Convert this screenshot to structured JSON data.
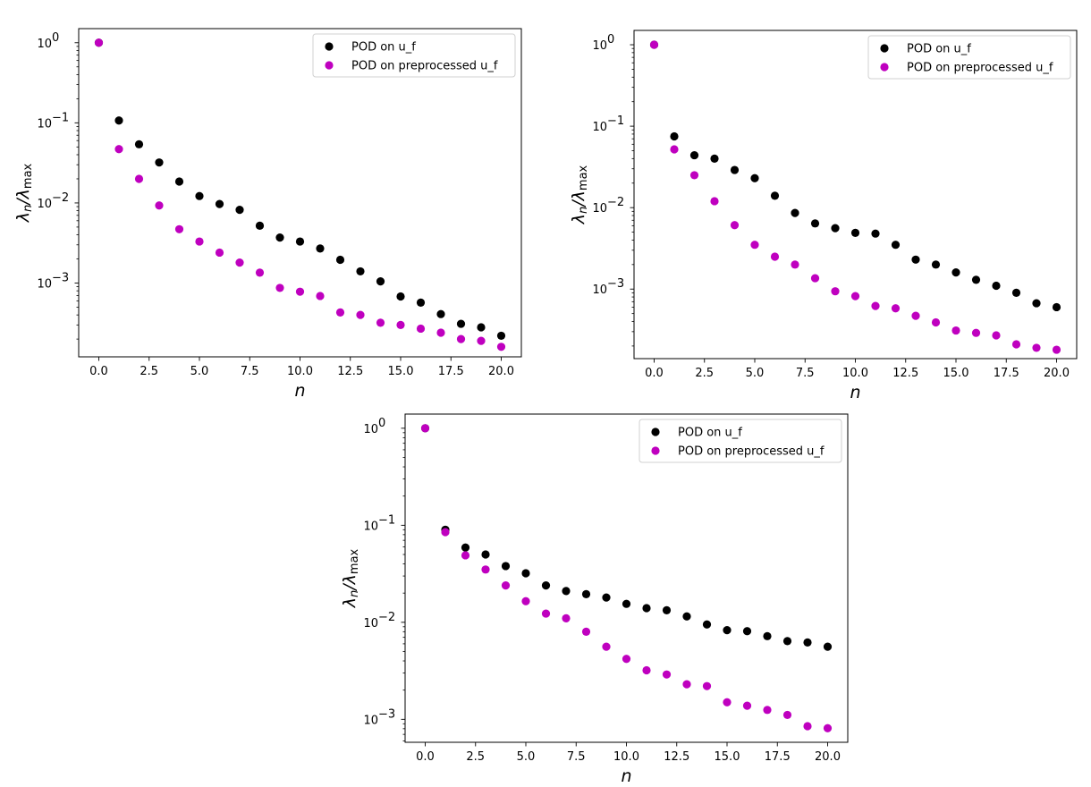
{
  "chart_data": [
    {
      "type": "scatter",
      "title": "",
      "xlabel": "n",
      "ylabel_main": "λ",
      "ylabel_sub1": "n",
      "ylabel_mid": "/λ",
      "ylabel_sub2": "max",
      "yscale": "log",
      "xlim": [
        -1,
        21
      ],
      "ylim": [
        0.00012,
        1.5
      ],
      "xticks": [
        "0.0",
        "2.5",
        "5.0",
        "7.5",
        "10.0",
        "12.5",
        "15.0",
        "17.5",
        "20.0"
      ],
      "yticks": [
        {
          "base": "10",
          "exp": "0"
        },
        {
          "base": "10",
          "exp": "−1"
        },
        {
          "base": "10",
          "exp": "−2"
        },
        {
          "base": "10",
          "exp": "−3"
        }
      ],
      "legend_position": "top-right",
      "x": [
        0,
        1,
        2,
        3,
        4,
        5,
        6,
        7,
        8,
        9,
        10,
        11,
        12,
        13,
        14,
        15,
        16,
        17,
        18,
        19,
        20
      ],
      "series": [
        {
          "name": "POD on u_f",
          "color": "#000000",
          "values": [
            1.0,
            0.107,
            0.054,
            0.032,
            0.0185,
            0.0122,
            0.0097,
            0.0082,
            0.0052,
            0.0037,
            0.0033,
            0.0027,
            0.00195,
            0.0014,
            0.00105,
            0.00068,
            0.00057,
            0.00041,
            0.00031,
            0.00028,
            0.00022
          ]
        },
        {
          "name": "POD on preprocessed u_f",
          "color": "#bf00bf",
          "values": [
            1.0,
            0.047,
            0.02,
            0.0093,
            0.0047,
            0.0033,
            0.0024,
            0.0018,
            0.00135,
            0.00087,
            0.00078,
            0.00069,
            0.00043,
            0.0004,
            0.00032,
            0.0003,
            0.00027,
            0.00024,
            0.0002,
            0.00019,
            0.00016
          ]
        }
      ]
    },
    {
      "type": "scatter",
      "title": "",
      "xlabel": "n",
      "ylabel_main": "λ",
      "ylabel_sub1": "n",
      "ylabel_mid": "/λ",
      "ylabel_sub2": "max",
      "yscale": "log",
      "xlim": [
        -1,
        21
      ],
      "ylim": [
        0.00014,
        1.5
      ],
      "xticks": [
        "0.0",
        "2.5",
        "5.0",
        "7.5",
        "10.0",
        "12.5",
        "15.0",
        "17.5",
        "20.0"
      ],
      "yticks": [
        {
          "base": "10",
          "exp": "0"
        },
        {
          "base": "10",
          "exp": "−1"
        },
        {
          "base": "10",
          "exp": "−2"
        },
        {
          "base": "10",
          "exp": "−3"
        }
      ],
      "legend_position": "top-right",
      "x": [
        0,
        1,
        2,
        3,
        4,
        5,
        6,
        7,
        8,
        9,
        10,
        11,
        12,
        13,
        14,
        15,
        16,
        17,
        18,
        19,
        20
      ],
      "series": [
        {
          "name": "POD on u_f",
          "color": "#000000",
          "values": [
            1.0,
            0.075,
            0.044,
            0.04,
            0.029,
            0.023,
            0.014,
            0.0086,
            0.0064,
            0.0056,
            0.0049,
            0.0048,
            0.0035,
            0.0023,
            0.002,
            0.0016,
            0.0013,
            0.0011,
            0.0009,
            0.00067,
            0.0006
          ]
        },
        {
          "name": "POD on preprocessed u_f",
          "color": "#bf00bf",
          "values": [
            1.0,
            0.052,
            0.025,
            0.012,
            0.0061,
            0.0035,
            0.0025,
            0.002,
            0.00136,
            0.00094,
            0.00082,
            0.00062,
            0.00058,
            0.00047,
            0.00039,
            0.00031,
            0.00029,
            0.00027,
            0.00021,
            0.00019,
            0.00018
          ]
        }
      ]
    },
    {
      "type": "scatter",
      "title": "",
      "xlabel": "n",
      "ylabel_main": "λ",
      "ylabel_sub1": "n",
      "ylabel_mid": "/λ",
      "ylabel_sub2": "max",
      "yscale": "log",
      "xlim": [
        -1,
        21
      ],
      "ylim": [
        0.00058,
        1.4
      ],
      "xticks": [
        "0.0",
        "2.5",
        "5.0",
        "7.5",
        "10.0",
        "12.5",
        "15.0",
        "17.5",
        "20.0"
      ],
      "yticks": [
        {
          "base": "10",
          "exp": "0"
        },
        {
          "base": "10",
          "exp": "−1"
        },
        {
          "base": "10",
          "exp": "−2"
        },
        {
          "base": "10",
          "exp": "−3"
        }
      ],
      "legend_position": "top-right",
      "x": [
        0,
        1,
        2,
        3,
        4,
        5,
        6,
        7,
        8,
        9,
        10,
        11,
        12,
        13,
        14,
        15,
        16,
        17,
        18,
        19,
        20
      ],
      "series": [
        {
          "name": "POD on u_f",
          "color": "#000000",
          "values": [
            1.0,
            0.09,
            0.059,
            0.05,
            0.038,
            0.032,
            0.024,
            0.021,
            0.0195,
            0.018,
            0.0155,
            0.014,
            0.0133,
            0.0115,
            0.0095,
            0.0083,
            0.0081,
            0.0072,
            0.0064,
            0.0062,
            0.0056
          ]
        },
        {
          "name": "POD on preprocessed u_f",
          "color": "#bf00bf",
          "values": [
            1.0,
            0.085,
            0.049,
            0.035,
            0.024,
            0.0165,
            0.0123,
            0.011,
            0.008,
            0.0056,
            0.0042,
            0.0032,
            0.0029,
            0.0023,
            0.0022,
            0.0015,
            0.00138,
            0.00125,
            0.00111,
            0.00085,
            0.00081
          ]
        }
      ]
    }
  ]
}
